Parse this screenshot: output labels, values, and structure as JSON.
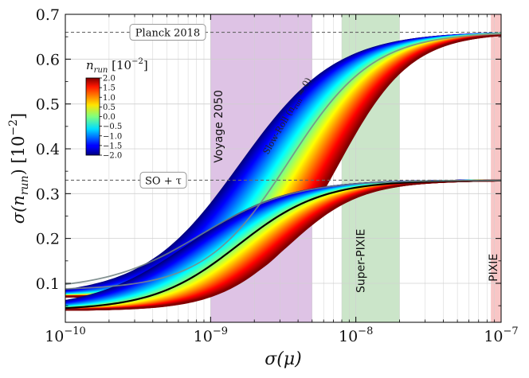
{
  "chart_data": {
    "type": "line",
    "xlabel": "σ(μ)",
    "ylabel": "σ(n",
    "ylabel_sub": "run",
    "ylabel_unit": ") [10",
    "ylabel_exp": "−2",
    "ylabel_close": "]",
    "xscale": "log",
    "xlim": [
      1e-10,
      1e-07
    ],
    "ylim": [
      0.013,
      0.7
    ],
    "x_ticks": [
      {
        "value": 1e-10,
        "base": "10",
        "exp": "−10"
      },
      {
        "value": 1e-09,
        "base": "10",
        "exp": "−9"
      },
      {
        "value": 1e-08,
        "base": "10",
        "exp": "−8"
      },
      {
        "value": 1e-07,
        "base": "10",
        "exp": "−7"
      }
    ],
    "y_ticks": [
      {
        "value": 0.1,
        "label": "0.1"
      },
      {
        "value": 0.2,
        "label": "0.2"
      },
      {
        "value": 0.3,
        "label": "0.3"
      },
      {
        "value": 0.4,
        "label": "0.4"
      },
      {
        "value": 0.5,
        "label": "0.5"
      },
      {
        "value": 0.6,
        "label": "0.6"
      },
      {
        "value": 0.7,
        "label": "0.7"
      }
    ],
    "grid": true,
    "reference_lines": [
      {
        "name": "Planck 2018",
        "y": 0.66
      },
      {
        "name": "SO + τ",
        "y": 0.33
      }
    ],
    "bands": [
      {
        "name": "Voyage 2050",
        "x_range": [
          1e-09,
          5e-09
        ],
        "color": "#d8b8e0"
      },
      {
        "name": "Super-PIXIE",
        "x_range": [
          8e-09,
          2e-08
        ],
        "color": "#c2e0c0"
      },
      {
        "name": "PIXIE",
        "x_range": [
          8.5e-08,
          1.1e-07
        ],
        "color": "#f7bcbc"
      }
    ],
    "families": [
      {
        "name": "upper",
        "y_low": 0.07,
        "y_high": 0.66,
        "x_mid_blue": 1.6e-09,
        "x_mid_red": 7.5e-09,
        "width_blue": 0.33,
        "width_red": 0.25
      },
      {
        "name": "lower",
        "y_low": 0.04,
        "y_high": 0.33,
        "x_mid_blue": 7e-10,
        "x_mid_red": 3.4e-09,
        "width_blue": 0.33,
        "width_red": 0.25
      }
    ],
    "special_curves": [
      {
        "name": "Slow-Roll (n_run ≈ 0) upper",
        "family": "upper",
        "t": 0.5,
        "color": "#7a8a8a",
        "y_start": 0.085
      },
      {
        "name": "lower black",
        "family": "lower",
        "t": 0.5,
        "color": "#000000",
        "y_start": 0.04
      },
      {
        "name": "lower gray",
        "family": "lower",
        "t": 0.12,
        "color": "#6e8080",
        "y_start": 0.085
      }
    ],
    "annotations": [
      {
        "text": "Slow-Roll (n",
        "sub": "run",
        "suffix": " ≈ 0)",
        "x": 3.5e-09,
        "y": 0.47
      },
      {
        "text": "Voyage 2050",
        "x": 1.2e-09,
        "y": 0.45
      },
      {
        "text": "Super-PIXIE",
        "x": 1.15e-08,
        "y": 0.15
      },
      {
        "text": "PIXIE",
        "x": 9.4e-08,
        "y": 0.135
      }
    ],
    "colorbar": {
      "title": "n",
      "title_sub": "run",
      "title_unit": "[10",
      "title_exp": "−2",
      "title_close": "]",
      "range": [
        -2.0,
        2.0
      ],
      "ticks": [
        "2.0",
        "1.5",
        "1.0",
        "0.5",
        "0.0",
        "−0.5",
        "−1.0",
        "−1.5",
        "−2.0"
      ],
      "tick_values": [
        2.0,
        1.5,
        1.0,
        0.5,
        0.0,
        -0.5,
        -1.0,
        -1.5,
        -2.0
      ],
      "colormap": "jet"
    }
  }
}
